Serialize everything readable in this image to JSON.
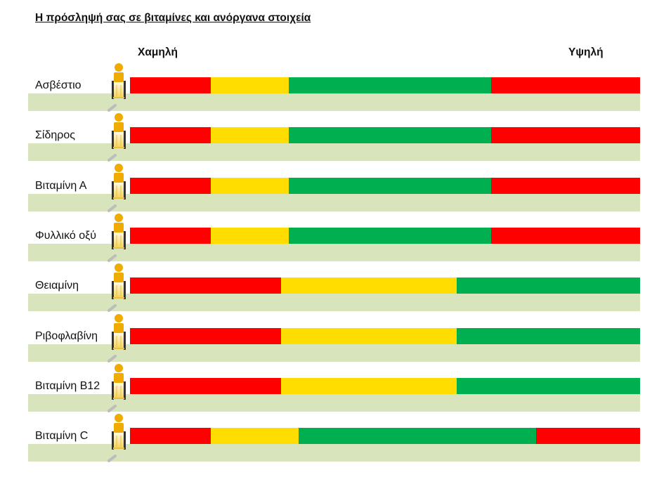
{
  "header": {
    "title": "Η πρόσληψή σας σε βιταμίνες και ανόργανα στοιχεία",
    "legend_low": "Χαμηλή",
    "legend_high": "Υψηλή"
  },
  "colors": {
    "red": "#ff0000",
    "yellow": "#ffdd00",
    "green": "#00b050",
    "row_background": "#d8e4bc",
    "marker": "#f0ab00"
  },
  "chart_data": {
    "type": "bar",
    "xlim": [
      0,
      100
    ],
    "xlabels": [
      "Χαμηλή",
      "Υψηλή"
    ],
    "nutrients": [
      {
        "name": "Ασβέστιο",
        "segments": [
          {
            "color": "red",
            "end": 15.8
          },
          {
            "color": "yellow",
            "end": 31.1
          },
          {
            "color": "green",
            "end": 70.8
          },
          {
            "color": "red",
            "end": 100
          }
        ],
        "marker_position": 0
      },
      {
        "name": "Σίδηρος",
        "segments": [
          {
            "color": "red",
            "end": 15.8
          },
          {
            "color": "yellow",
            "end": 31.1
          },
          {
            "color": "green",
            "end": 70.8
          },
          {
            "color": "red",
            "end": 100
          }
        ],
        "marker_position": 0
      },
      {
        "name": "Βιταμίνη Α",
        "segments": [
          {
            "color": "red",
            "end": 15.8
          },
          {
            "color": "yellow",
            "end": 31.1
          },
          {
            "color": "green",
            "end": 70.8
          },
          {
            "color": "red",
            "end": 100
          }
        ],
        "marker_position": 0
      },
      {
        "name": "Φυλλικό οξύ",
        "segments": [
          {
            "color": "red",
            "end": 15.8
          },
          {
            "color": "yellow",
            "end": 31.1
          },
          {
            "color": "green",
            "end": 70.8
          },
          {
            "color": "red",
            "end": 100
          }
        ],
        "marker_position": 0
      },
      {
        "name": "Θειαμίνη",
        "segments": [
          {
            "color": "red",
            "end": 29.6
          },
          {
            "color": "yellow",
            "end": 64.0
          },
          {
            "color": "green",
            "end": 100
          }
        ],
        "marker_position": 0
      },
      {
        "name": "Ριβοφλαβίνη",
        "segments": [
          {
            "color": "red",
            "end": 29.6
          },
          {
            "color": "yellow",
            "end": 64.0
          },
          {
            "color": "green",
            "end": 100
          }
        ],
        "marker_position": 0
      },
      {
        "name": "Βιταμίνη Β12",
        "segments": [
          {
            "color": "red",
            "end": 29.6
          },
          {
            "color": "yellow",
            "end": 64.0
          },
          {
            "color": "green",
            "end": 100
          }
        ],
        "marker_position": 0
      },
      {
        "name": "Βιταμίνη C",
        "segments": [
          {
            "color": "red",
            "end": 15.8
          },
          {
            "color": "yellow",
            "end": 33.0
          },
          {
            "color": "green",
            "end": 79.6
          },
          {
            "color": "red",
            "end": 100
          }
        ],
        "marker_position": 0
      }
    ]
  }
}
